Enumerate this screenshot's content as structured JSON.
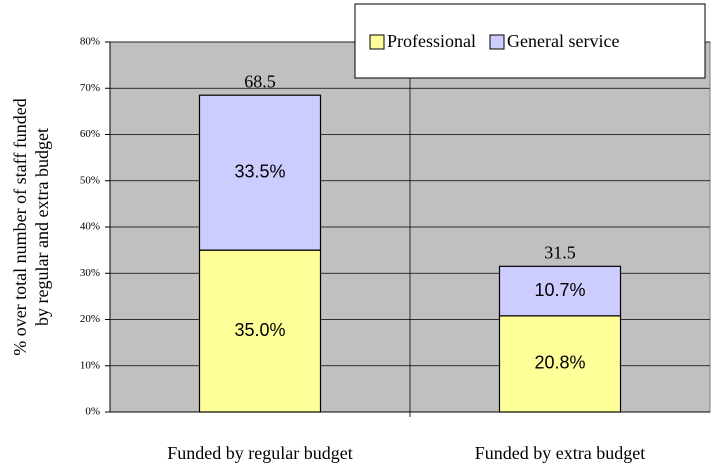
{
  "chart_data": {
    "type": "stacked_bar",
    "y_label": [
      "% over total number of staff funded",
      "by regular and extra budget"
    ],
    "categories": [
      "Funded by regular budget",
      "Funded by extra budget"
    ],
    "series": [
      {
        "name": "Professional",
        "color": "#ffff99",
        "values": [
          35.0,
          20.8
        ],
        "value_labels": [
          "35.0%",
          "20.8%"
        ]
      },
      {
        "name": "General service",
        "color": "#ccccff",
        "values": [
          33.5,
          10.7
        ],
        "value_labels": [
          "33.5%",
          "10.7%"
        ]
      }
    ],
    "totals": [
      68.5,
      31.5
    ],
    "ylim": [
      0,
      80
    ],
    "yticks": [
      {
        "value": 0,
        "label": "0%"
      },
      {
        "value": 10,
        "label": "10%"
      },
      {
        "value": 20,
        "label": "20%"
      },
      {
        "value": 30,
        "label": "30%"
      },
      {
        "value": 40,
        "label": "40%"
      },
      {
        "value": 50,
        "label": "50%"
      },
      {
        "value": 60,
        "label": "60%"
      },
      {
        "value": 70,
        "label": "70%"
      },
      {
        "value": 80,
        "label": "80%"
      }
    ],
    "grid": true,
    "legend": "top-right"
  }
}
